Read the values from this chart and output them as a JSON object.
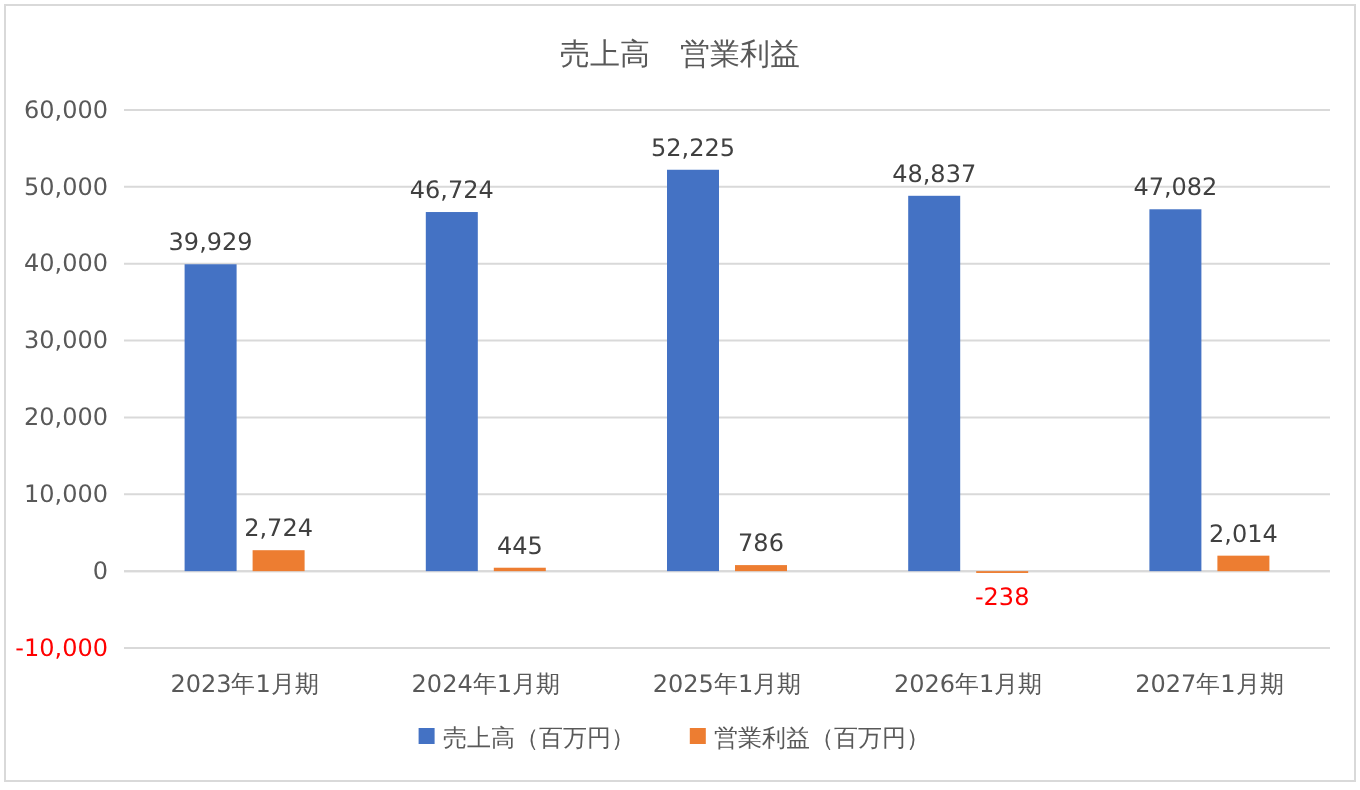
{
  "chart_data": {
    "type": "bar",
    "title": "売上高　営業利益",
    "categories": [
      "2023年1月期",
      "2024年1月期",
      "2025年1月期",
      "2026年1月期",
      "2027年1月期"
    ],
    "series": [
      {
        "name": "売上高（百万円）",
        "color": "#4472c4",
        "values": [
          39929,
          46724,
          52225,
          48837,
          47082
        ],
        "value_labels": [
          "39,929",
          "46,724",
          "52,225",
          "48,837",
          "47,082"
        ]
      },
      {
        "name": "営業利益（百万円）",
        "color": "#ed7d31",
        "values": [
          2724,
          445,
          786,
          -238,
          2014
        ],
        "value_labels": [
          "2,724",
          "445",
          "786",
          "-238",
          "2,014"
        ]
      }
    ],
    "ylim": [
      -10000,
      60000
    ],
    "yticks": [
      {
        "value": -10000,
        "label": "-10,000"
      },
      {
        "value": 0,
        "label": "0"
      },
      {
        "value": 10000,
        "label": "10,000"
      },
      {
        "value": 20000,
        "label": "20,000"
      },
      {
        "value": 30000,
        "label": "30,000"
      },
      {
        "value": 40000,
        "label": "40,000"
      },
      {
        "value": 50000,
        "label": "50,000"
      },
      {
        "value": 60000,
        "label": "60,000"
      }
    ],
    "grid": "y",
    "legend": "bottom"
  }
}
